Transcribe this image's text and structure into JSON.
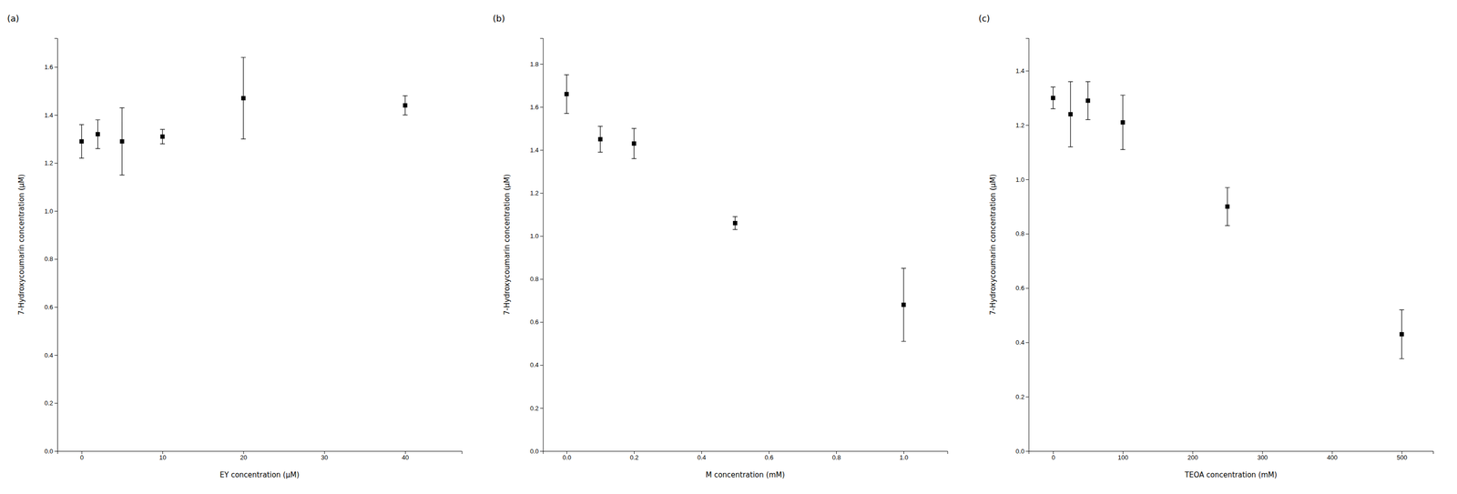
{
  "chart_data": [
    {
      "type": "scatter",
      "title": "(a)",
      "xlabel": "EY concentration (μM)",
      "ylabel": "7-Hydroxycoumarin concentration (μM)",
      "x": [
        0,
        2,
        5,
        10,
        20,
        40
      ],
      "values": [
        1.29,
        1.32,
        1.29,
        1.31,
        1.47,
        1.44
      ],
      "yerr": [
        0.07,
        0.06,
        0.14,
        0.03,
        0.17,
        0.04
      ],
      "xlim": [
        -3,
        47
      ],
      "ylim": [
        0,
        1.72
      ],
      "xticks": [
        0,
        10,
        20,
        30,
        40
      ],
      "yticks": [
        {
          "value": 0.0,
          "label": "0.0"
        },
        0.2,
        0.4,
        0.6,
        0.8,
        {
          "value": 1.0,
          "label": "1.0"
        },
        1.2,
        1.4,
        1.6
      ],
      "marker": "square",
      "color": "black"
    },
    {
      "type": "scatter",
      "title": "(b)",
      "xlabel": "M concentration (mM)",
      "ylabel": "7-Hydroxycoumarin concentration (μM)",
      "x": [
        0.0,
        0.1,
        0.2,
        0.5,
        1.0
      ],
      "values": [
        1.66,
        1.45,
        1.43,
        1.06,
        0.68
      ],
      "yerr": [
        0.09,
        0.06,
        0.07,
        0.03,
        0.17
      ],
      "xlim": [
        -0.07,
        1.13
      ],
      "ylim": [
        0,
        1.92
      ],
      "xticks": [
        {
          "value": 0.0,
          "label": "0.0"
        },
        0.2,
        0.4,
        0.6,
        0.8,
        {
          "value": 1.0,
          "label": "1.0"
        }
      ],
      "yticks": [
        {
          "value": 0.0,
          "label": "0.0"
        },
        0.2,
        0.4,
        0.6,
        0.8,
        {
          "value": 1.0,
          "label": "1.0"
        },
        1.2,
        1.4,
        1.6,
        1.8
      ],
      "marker": "square",
      "color": "black"
    },
    {
      "type": "scatter",
      "title": "(c)",
      "xlabel": "TEOA concentration (mM)",
      "ylabel": "7-Hydroxycoumarin concentration (μM)",
      "x": [
        0,
        25,
        50,
        100,
        250,
        500
      ],
      "values": [
        1.3,
        1.24,
        1.29,
        1.21,
        0.9,
        0.43
      ],
      "yerr": [
        0.04,
        0.12,
        0.07,
        0.1,
        0.07,
        0.09
      ],
      "xlim": [
        -35,
        545
      ],
      "ylim": [
        0,
        1.52
      ],
      "xticks": [
        0,
        100,
        200,
        300,
        400,
        500
      ],
      "yticks": [
        {
          "value": 0.0,
          "label": "0.0"
        },
        0.2,
        0.4,
        0.6,
        0.8,
        {
          "value": 1.0,
          "label": "1.0"
        },
        1.2,
        1.4
      ],
      "marker": "square",
      "color": "black"
    }
  ]
}
